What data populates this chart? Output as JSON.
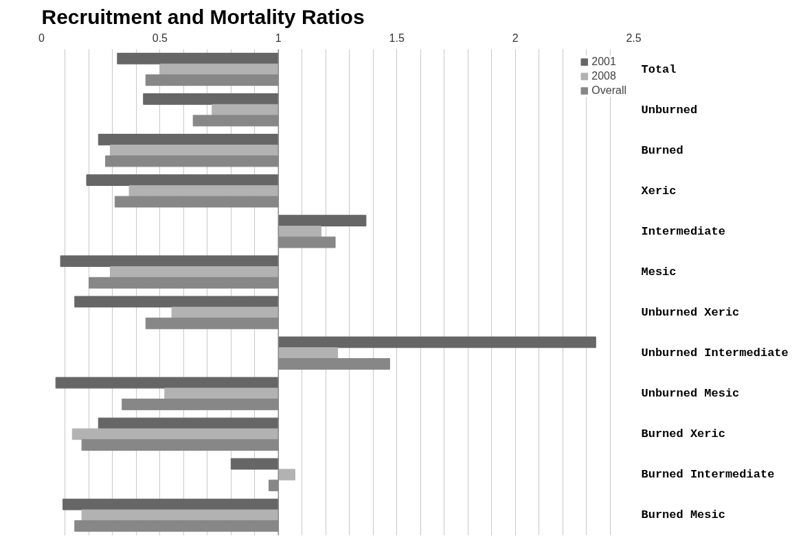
{
  "chart_data": {
    "type": "bar",
    "orientation": "horizontal",
    "title": "Recruitment and Mortality Ratios",
    "categories": [
      "Total",
      "Unburned",
      "Burned",
      "Xeric",
      "Intermediate",
      "Mesic",
      "Unburned Xeric",
      "Unburned Intermediate",
      "Unburned Mesic",
      "Burned Xeric",
      "Burned Intermediate",
      "Burned Mesic"
    ],
    "series": [
      {
        "name": "2001",
        "color": "#666666",
        "base": [
          1,
          1,
          1,
          1,
          1,
          1,
          1,
          1,
          1,
          1,
          1,
          1
        ],
        "values": [
          -0.68,
          -0.57,
          -0.76,
          -0.81,
          0.37,
          -0.92,
          -0.86,
          1.34,
          -0.94,
          -0.76,
          -0.2,
          -0.91
        ]
      },
      {
        "name": "2008",
        "color": "#b2b2b2",
        "base": [
          1,
          1,
          1,
          1,
          1,
          1,
          1,
          1,
          1,
          1,
          1,
          1
        ],
        "values": [
          -0.5,
          -0.28,
          -0.71,
          -0.63,
          0.18,
          -0.71,
          -0.45,
          0.25,
          -0.48,
          -0.87,
          0.07,
          -0.83
        ]
      },
      {
        "name": "Overall",
        "color": "#878787",
        "base": [
          1,
          1,
          1,
          1,
          1,
          1,
          1,
          1,
          1,
          1,
          1,
          1
        ],
        "values": [
          -0.56,
          -0.36,
          -0.73,
          -0.69,
          0.24,
          -0.8,
          -0.56,
          0.47,
          -0.66,
          -0.83,
          -0.04,
          -0.86
        ]
      }
    ],
    "xlim": [
      0,
      2.5
    ],
    "xticks": [
      0,
      0.5,
      1,
      1.5,
      2,
      2.5
    ],
    "grid": "x",
    "legend": "top right"
  }
}
